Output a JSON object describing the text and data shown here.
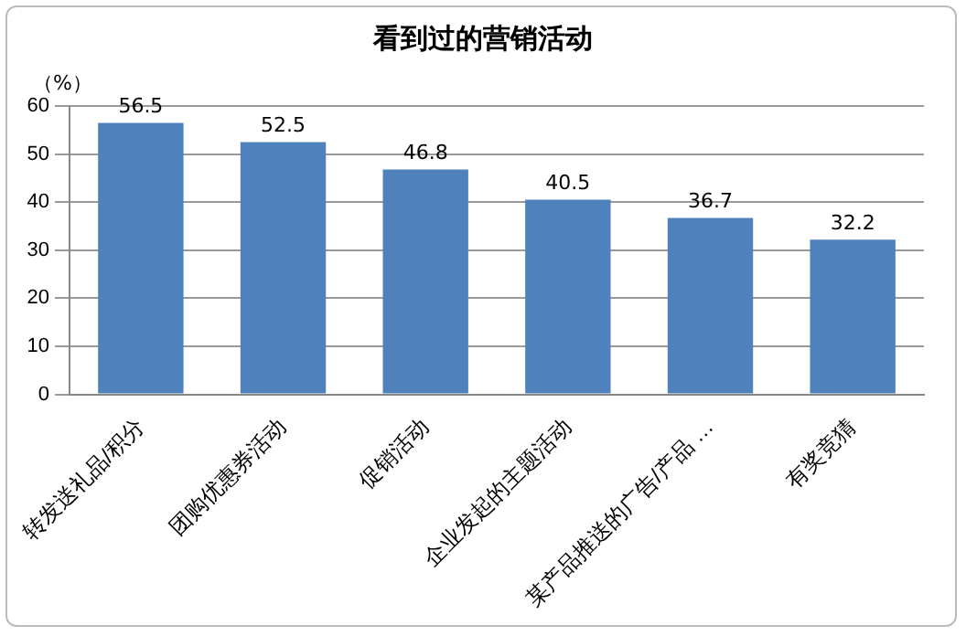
{
  "chart_data": {
    "type": "bar",
    "title": "看到过的营销活动",
    "ylabel": "（%）",
    "categories": [
      "转发送礼品/积分",
      "团购优惠券活动",
      "促销活动",
      "企业发起的主题活动",
      "某产品推送的广告/产品 …",
      "有奖竞猜"
    ],
    "values": [
      56.5,
      52.5,
      46.8,
      40.5,
      36.7,
      32.2
    ],
    "color": "#4f81bd",
    "ylim": [
      0,
      60
    ],
    "yticks": [
      0,
      10,
      20,
      30,
      40,
      50,
      60
    ],
    "grid": "y",
    "data_labels": true,
    "legend": false
  }
}
